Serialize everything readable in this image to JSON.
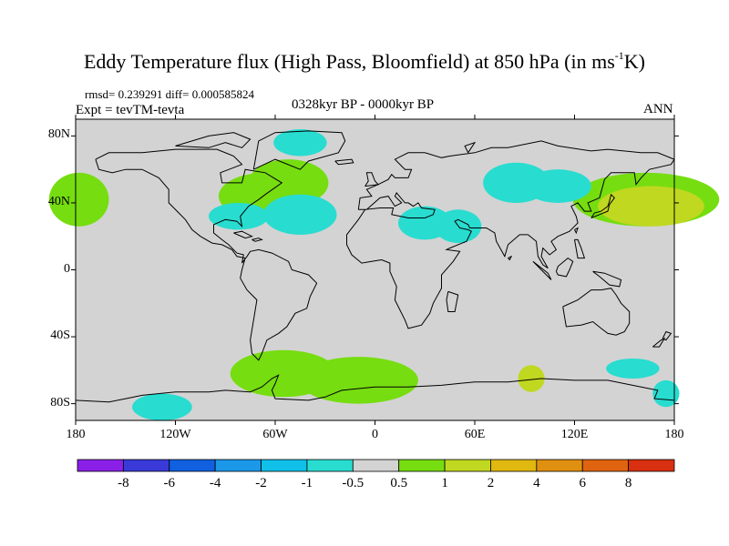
{
  "title": {
    "main": "Eddy Temperature flux (High Pass, Bloomfield) at 850 hPa (in ms",
    "superscript": "-1",
    "suffix": "K)"
  },
  "subtitles": {
    "stats": "rmsd= 0.239291 diff= 0.000585824",
    "expt": "Expt = tevTM-tevta",
    "period": "0328kyr BP - 0000kyr BP",
    "season": "ANN"
  },
  "map": {
    "projection": "cylindrical-equidistant",
    "lon_range": [
      -180,
      180
    ],
    "lat_range": [
      -90,
      90
    ],
    "background_color": "#d3d3d3",
    "coastline_color": "#000000",
    "y_tick_labels": [
      "80N",
      "40N",
      "0",
      "40S",
      "80S"
    ],
    "x_tick_labels": [
      "180",
      "120W",
      "60W",
      "0",
      "60E",
      "120E",
      "180"
    ],
    "anomaly_regions": [
      {
        "lon": -178,
        "lat": 42,
        "level": "0.5 to 1",
        "color": "#76dd10"
      },
      {
        "lon": -66,
        "lat": 44,
        "level": "0.5 to 1",
        "color": "#76dd10"
      },
      {
        "lon": -52,
        "lat": 52,
        "level": "0.5 to 1",
        "color": "#76dd10"
      },
      {
        "lon": 163,
        "lat": 42,
        "level": "0.5 to 1",
        "color": "#76dd10"
      },
      {
        "lon": 166,
        "lat": 38,
        "level": "1 to 2",
        "color": "#c0d820"
      },
      {
        "lon": -55,
        "lat": -62,
        "level": "0.5 to 1",
        "color": "#76dd10"
      },
      {
        "lon": -10,
        "lat": -66,
        "level": "0.5 to 1",
        "color": "#76dd10"
      },
      {
        "lon": 94,
        "lat": -65,
        "level": "1 to 2",
        "color": "#c0d820"
      },
      {
        "lon": -45,
        "lat": 76,
        "level": "-1 to -0.5",
        "color": "#28dcd0"
      },
      {
        "lon": 110,
        "lat": 50,
        "level": "-1 to -0.5",
        "color": "#28dcd0"
      },
      {
        "lon": -45,
        "lat": 33,
        "level": "-1 to -0.5",
        "color": "#28dcd0"
      },
      {
        "lon": -82,
        "lat": 32,
        "level": "-1 to -0.5",
        "color": "#28dcd0"
      },
      {
        "lon": 30,
        "lat": 28,
        "level": "-1 to -0.5",
        "color": "#28dcd0"
      },
      {
        "lon": 50,
        "lat": 26,
        "level": "-1 to -0.5",
        "color": "#28dcd0"
      },
      {
        "lon": 85,
        "lat": 52,
        "level": "-1 to -0.5",
        "color": "#28dcd0"
      },
      {
        "lon": -128,
        "lat": -82,
        "level": "-1 to -0.5",
        "color": "#28dcd0"
      },
      {
        "lon": 155,
        "lat": -59,
        "level": "-1 to -0.5",
        "color": "#28dcd0"
      },
      {
        "lon": 175,
        "lat": -74,
        "level": "-1 to -0.5",
        "color": "#28dcd0"
      }
    ]
  },
  "colorbar": {
    "colors": [
      "#8a20e8",
      "#3a3ad8",
      "#1060e0",
      "#1c98e8",
      "#10c0e8",
      "#28dcd0",
      "#d3d3d3",
      "#76dd10",
      "#c0d820",
      "#e0b810",
      "#e09010",
      "#e06410",
      "#d83010"
    ],
    "labels": [
      "-8",
      "-6",
      "-4",
      "-2",
      "-1",
      "-0.5",
      "0.5",
      "1",
      "2",
      "4",
      "6",
      "8"
    ]
  }
}
